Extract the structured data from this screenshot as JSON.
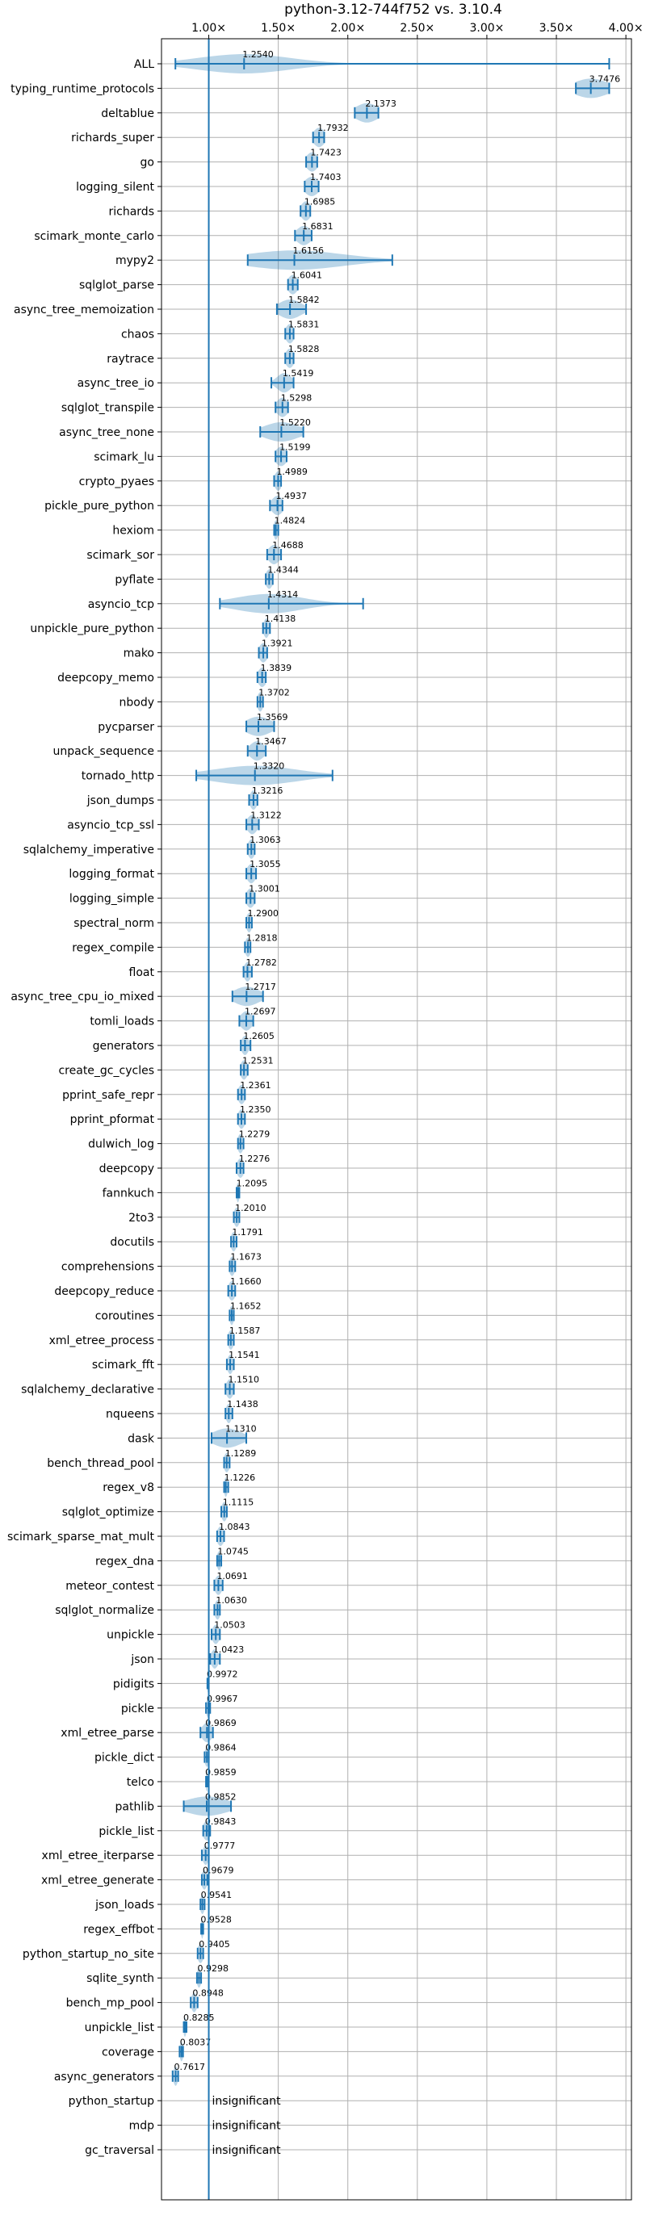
{
  "chart_data": {
    "type": "violin",
    "title": "python-3.12-744f752 vs. 3.10.4",
    "xlim": [
      0.66,
      4.04
    ],
    "xticks": [
      {
        "value": 1.0,
        "label": "1.00×"
      },
      {
        "value": 1.5,
        "label": "1.50×"
      },
      {
        "value": 2.0,
        "label": "2.00×"
      },
      {
        "value": 2.5,
        "label": "2.50×"
      },
      {
        "value": 3.0,
        "label": "3.00×"
      },
      {
        "value": 3.5,
        "label": "3.50×"
      },
      {
        "value": 4.0,
        "label": "4.00×"
      }
    ],
    "grid": true,
    "reference_line": 1.0,
    "insignificant_text": "insignificant",
    "benchmarks": [
      {
        "name": "ALL",
        "value": 1.254,
        "label": "1.2540",
        "min": 0.76,
        "max": 3.88,
        "spread": 0.33
      },
      {
        "name": "typing_runtime_protocols",
        "value": 3.7476,
        "label": "3.7476",
        "min": 3.64,
        "max": 3.88,
        "spread": 0.12
      },
      {
        "name": "deltablue",
        "value": 2.1373,
        "label": "2.1373",
        "min": 2.05,
        "max": 2.22,
        "spread": 0.08
      },
      {
        "name": "richards_super",
        "value": 1.7932,
        "label": "1.7932",
        "min": 1.75,
        "max": 1.83,
        "spread": 0.04
      },
      {
        "name": "go",
        "value": 1.7423,
        "label": "1.7423",
        "min": 1.7,
        "max": 1.78,
        "spread": 0.04
      },
      {
        "name": "logging_silent",
        "value": 1.7403,
        "label": "1.7403",
        "min": 1.69,
        "max": 1.79,
        "spread": 0.05
      },
      {
        "name": "richards",
        "value": 1.6985,
        "label": "1.6985",
        "min": 1.66,
        "max": 1.73,
        "spread": 0.035
      },
      {
        "name": "scimark_monte_carlo",
        "value": 1.6831,
        "label": "1.6831",
        "min": 1.62,
        "max": 1.74,
        "spread": 0.05
      },
      {
        "name": "mypy2",
        "value": 1.6156,
        "label": "1.6156",
        "min": 1.28,
        "max": 2.32,
        "spread": 0.35
      },
      {
        "name": "sqlglot_parse",
        "value": 1.6041,
        "label": "1.6041",
        "min": 1.57,
        "max": 1.64,
        "spread": 0.035
      },
      {
        "name": "async_tree_memoization",
        "value": 1.5842,
        "label": "1.5842",
        "min": 1.49,
        "max": 1.7,
        "spread": 0.08
      },
      {
        "name": "chaos",
        "value": 1.5831,
        "label": "1.5831",
        "min": 1.55,
        "max": 1.61,
        "spread": 0.03
      },
      {
        "name": "raytrace",
        "value": 1.5828,
        "label": "1.5828",
        "min": 1.55,
        "max": 1.61,
        "spread": 0.03
      },
      {
        "name": "async_tree_io",
        "value": 1.5419,
        "label": "1.5419",
        "min": 1.45,
        "max": 1.61,
        "spread": 0.05
      },
      {
        "name": "sqlglot_transpile",
        "value": 1.5298,
        "label": "1.5298",
        "min": 1.48,
        "max": 1.57,
        "spread": 0.04
      },
      {
        "name": "async_tree_none",
        "value": 1.522,
        "label": "1.5220",
        "min": 1.37,
        "max": 1.68,
        "spread": 0.12
      },
      {
        "name": "scimark_lu",
        "value": 1.5199,
        "label": "1.5199",
        "min": 1.48,
        "max": 1.56,
        "spread": 0.04
      },
      {
        "name": "crypto_pyaes",
        "value": 1.4989,
        "label": "1.4989",
        "min": 1.47,
        "max": 1.52,
        "spread": 0.025
      },
      {
        "name": "pickle_pure_python",
        "value": 1.4937,
        "label": "1.4937",
        "min": 1.44,
        "max": 1.53,
        "spread": 0.04
      },
      {
        "name": "hexiom",
        "value": 1.4824,
        "label": "1.4824",
        "min": 1.47,
        "max": 1.5,
        "spread": 0.015
      },
      {
        "name": "scimark_sor",
        "value": 1.4688,
        "label": "1.4688",
        "min": 1.42,
        "max": 1.52,
        "spread": 0.04
      },
      {
        "name": "pyflate",
        "value": 1.4344,
        "label": "1.4344",
        "min": 1.41,
        "max": 1.46,
        "spread": 0.025
      },
      {
        "name": "asyncio_tcp",
        "value": 1.4314,
        "label": "1.4314",
        "min": 1.08,
        "max": 2.11,
        "spread": 0.24
      },
      {
        "name": "unpickle_pure_python",
        "value": 1.4138,
        "label": "1.4138",
        "min": 1.39,
        "max": 1.44,
        "spread": 0.02
      },
      {
        "name": "mako",
        "value": 1.3921,
        "label": "1.3921",
        "min": 1.36,
        "max": 1.42,
        "spread": 0.03
      },
      {
        "name": "deepcopy_memo",
        "value": 1.3839,
        "label": "1.3839",
        "min": 1.35,
        "max": 1.41,
        "spread": 0.03
      },
      {
        "name": "nbody",
        "value": 1.3702,
        "label": "1.3702",
        "min": 1.35,
        "max": 1.39,
        "spread": 0.02
      },
      {
        "name": "pycparser",
        "value": 1.3569,
        "label": "1.3569",
        "min": 1.27,
        "max": 1.47,
        "spread": 0.09
      },
      {
        "name": "unpack_sequence",
        "value": 1.3467,
        "label": "1.3467",
        "min": 1.28,
        "max": 1.41,
        "spread": 0.05
      },
      {
        "name": "tornado_http",
        "value": 1.332,
        "label": "1.3320",
        "min": 0.91,
        "max": 1.89,
        "spread": 0.3
      },
      {
        "name": "json_dumps",
        "value": 1.3216,
        "label": "1.3216",
        "min": 1.29,
        "max": 1.35,
        "spread": 0.025
      },
      {
        "name": "asyncio_tcp_ssl",
        "value": 1.3122,
        "label": "1.3122",
        "min": 1.27,
        "max": 1.36,
        "spread": 0.035
      },
      {
        "name": "sqlalchemy_imperative",
        "value": 1.3063,
        "label": "1.3063",
        "min": 1.28,
        "max": 1.33,
        "spread": 0.025
      },
      {
        "name": "logging_format",
        "value": 1.3055,
        "label": "1.3055",
        "min": 1.27,
        "max": 1.34,
        "spread": 0.03
      },
      {
        "name": "logging_simple",
        "value": 1.3001,
        "label": "1.3001",
        "min": 1.27,
        "max": 1.33,
        "spread": 0.03
      },
      {
        "name": "spectral_norm",
        "value": 1.29,
        "label": "1.2900",
        "min": 1.27,
        "max": 1.31,
        "spread": 0.02
      },
      {
        "name": "regex_compile",
        "value": 1.2818,
        "label": "1.2818",
        "min": 1.26,
        "max": 1.3,
        "spread": 0.02
      },
      {
        "name": "float",
        "value": 1.2782,
        "label": "1.2782",
        "min": 1.25,
        "max": 1.31,
        "spread": 0.025
      },
      {
        "name": "async_tree_cpu_io_mixed",
        "value": 1.2717,
        "label": "1.2717",
        "min": 1.17,
        "max": 1.39,
        "spread": 0.09
      },
      {
        "name": "tomli_loads",
        "value": 1.2697,
        "label": "1.2697",
        "min": 1.22,
        "max": 1.32,
        "spread": 0.04
      },
      {
        "name": "generators",
        "value": 1.2605,
        "label": "1.2605",
        "min": 1.23,
        "max": 1.3,
        "spread": 0.025
      },
      {
        "name": "create_gc_cycles",
        "value": 1.2531,
        "label": "1.2531",
        "min": 1.23,
        "max": 1.28,
        "spread": 0.025
      },
      {
        "name": "pprint_safe_repr",
        "value": 1.2361,
        "label": "1.2361",
        "min": 1.21,
        "max": 1.26,
        "spread": 0.025
      },
      {
        "name": "pprint_pformat",
        "value": 1.235,
        "label": "1.2350",
        "min": 1.21,
        "max": 1.26,
        "spread": 0.025
      },
      {
        "name": "dulwich_log",
        "value": 1.2279,
        "label": "1.2279",
        "min": 1.21,
        "max": 1.25,
        "spread": 0.02
      },
      {
        "name": "deepcopy",
        "value": 1.2276,
        "label": "1.2276",
        "min": 1.2,
        "max": 1.25,
        "spread": 0.025
      },
      {
        "name": "fannkuch",
        "value": 1.2095,
        "label": "1.2095",
        "min": 1.2,
        "max": 1.22,
        "spread": 0.01
      },
      {
        "name": "2to3",
        "value": 1.201,
        "label": "1.2010",
        "min": 1.18,
        "max": 1.22,
        "spread": 0.02
      },
      {
        "name": "docutils",
        "value": 1.1791,
        "label": "1.1791",
        "min": 1.16,
        "max": 1.2,
        "spread": 0.02
      },
      {
        "name": "comprehensions",
        "value": 1.1673,
        "label": "1.1673",
        "min": 1.15,
        "max": 1.19,
        "spread": 0.02
      },
      {
        "name": "deepcopy_reduce",
        "value": 1.166,
        "label": "1.1660",
        "min": 1.14,
        "max": 1.19,
        "spread": 0.025
      },
      {
        "name": "coroutines",
        "value": 1.1652,
        "label": "1.1652",
        "min": 1.15,
        "max": 1.18,
        "spread": 0.015
      },
      {
        "name": "xml_etree_process",
        "value": 1.1587,
        "label": "1.1587",
        "min": 1.14,
        "max": 1.18,
        "spread": 0.02
      },
      {
        "name": "scimark_fft",
        "value": 1.1541,
        "label": "1.1541",
        "min": 1.13,
        "max": 1.18,
        "spread": 0.02
      },
      {
        "name": "sqlalchemy_declarative",
        "value": 1.151,
        "label": "1.1510",
        "min": 1.12,
        "max": 1.18,
        "spread": 0.025
      },
      {
        "name": "nqueens",
        "value": 1.1438,
        "label": "1.1438",
        "min": 1.12,
        "max": 1.17,
        "spread": 0.02
      },
      {
        "name": "dask",
        "value": 1.131,
        "label": "1.1310",
        "min": 1.02,
        "max": 1.27,
        "spread": 0.1
      },
      {
        "name": "bench_thread_pool",
        "value": 1.1289,
        "label": "1.1289",
        "min": 1.11,
        "max": 1.15,
        "spread": 0.02
      },
      {
        "name": "regex_v8",
        "value": 1.1226,
        "label": "1.1226",
        "min": 1.11,
        "max": 1.14,
        "spread": 0.012
      },
      {
        "name": "sqlglot_optimize",
        "value": 1.1115,
        "label": "1.1115",
        "min": 1.09,
        "max": 1.13,
        "spread": 0.02
      },
      {
        "name": "scimark_sparse_mat_mult",
        "value": 1.0843,
        "label": "1.0843",
        "min": 1.06,
        "max": 1.11,
        "spread": 0.025
      },
      {
        "name": "regex_dna",
        "value": 1.0745,
        "label": "1.0745",
        "min": 1.06,
        "max": 1.09,
        "spread": 0.015
      },
      {
        "name": "meteor_contest",
        "value": 1.0691,
        "label": "1.0691",
        "min": 1.04,
        "max": 1.1,
        "spread": 0.025
      },
      {
        "name": "sqlglot_normalize",
        "value": 1.063,
        "label": "1.0630",
        "min": 1.04,
        "max": 1.08,
        "spread": 0.02
      },
      {
        "name": "unpickle",
        "value": 1.0503,
        "label": "1.0503",
        "min": 1.02,
        "max": 1.08,
        "spread": 0.025
      },
      {
        "name": "json",
        "value": 1.0423,
        "label": "1.0423",
        "min": 1.01,
        "max": 1.08,
        "spread": 0.025
      },
      {
        "name": "pidigits",
        "value": 0.9972,
        "label": "0.9972",
        "min": 0.99,
        "max": 1.0,
        "spread": 0.01
      },
      {
        "name": "pickle",
        "value": 0.9967,
        "label": "0.9967",
        "min": 0.98,
        "max": 1.01,
        "spread": 0.015
      },
      {
        "name": "xml_etree_parse",
        "value": 0.9869,
        "label": "0.9869",
        "min": 0.94,
        "max": 1.03,
        "spread": 0.035
      },
      {
        "name": "pickle_dict",
        "value": 0.9864,
        "label": "0.9864",
        "min": 0.97,
        "max": 1.0,
        "spread": 0.015
      },
      {
        "name": "telco",
        "value": 0.9859,
        "label": "0.9859",
        "min": 0.98,
        "max": 0.99,
        "spread": 0.008
      },
      {
        "name": "pathlib",
        "value": 0.9852,
        "label": "0.9852",
        "min": 0.82,
        "max": 1.16,
        "spread": 0.15
      },
      {
        "name": "pickle_list",
        "value": 0.9843,
        "label": "0.9843",
        "min": 0.96,
        "max": 1.01,
        "spread": 0.025
      },
      {
        "name": "xml_etree_iterparse",
        "value": 0.9777,
        "label": "0.9777",
        "min": 0.95,
        "max": 1.0,
        "spread": 0.02
      },
      {
        "name": "xml_etree_generate",
        "value": 0.9679,
        "label": "0.9679",
        "min": 0.95,
        "max": 0.99,
        "spread": 0.02
      },
      {
        "name": "json_loads",
        "value": 0.9541,
        "label": "0.9541",
        "min": 0.94,
        "max": 0.97,
        "spread": 0.015
      },
      {
        "name": "regex_effbot",
        "value": 0.9528,
        "label": "0.9528",
        "min": 0.945,
        "max": 0.96,
        "spread": 0.008
      },
      {
        "name": "python_startup_no_site",
        "value": 0.9405,
        "label": "0.9405",
        "min": 0.92,
        "max": 0.96,
        "spread": 0.02
      },
      {
        "name": "sqlite_synth",
        "value": 0.9298,
        "label": "0.9298",
        "min": 0.915,
        "max": 0.945,
        "spread": 0.015
      },
      {
        "name": "bench_mp_pool",
        "value": 0.8948,
        "label": "0.8948",
        "min": 0.87,
        "max": 0.92,
        "spread": 0.02
      },
      {
        "name": "unpickle_list",
        "value": 0.8285,
        "label": "0.8285",
        "min": 0.82,
        "max": 0.84,
        "spread": 0.01
      },
      {
        "name": "coverage",
        "value": 0.8037,
        "label": "0.8037",
        "min": 0.79,
        "max": 0.815,
        "spread": 0.012
      },
      {
        "name": "async_generators",
        "value": 0.7617,
        "label": "0.7617",
        "min": 0.74,
        "max": 0.78,
        "spread": 0.015
      },
      {
        "name": "python_startup",
        "value": null,
        "label": "insignificant"
      },
      {
        "name": "mdp",
        "value": null,
        "label": "insignificant"
      },
      {
        "name": "gc_traversal",
        "value": null,
        "label": "insignificant"
      }
    ]
  }
}
